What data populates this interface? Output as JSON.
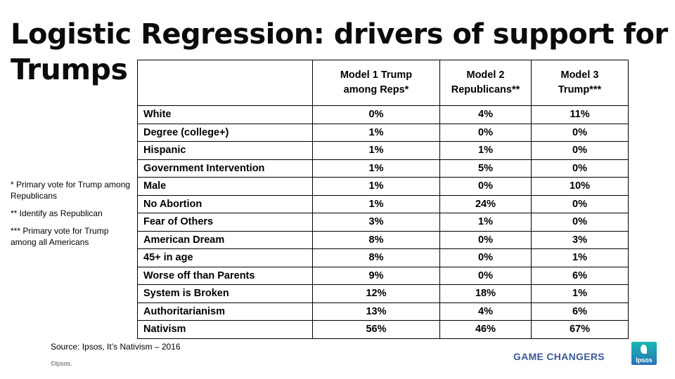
{
  "title": {
    "line1": "Logistic Regression: drivers of support for",
    "line2": "Trumps"
  },
  "notes": [
    "* Primary vote for Trump among Republicans",
    "** Identify as Republican",
    "*** Primary vote for Trump among all Americans"
  ],
  "table": {
    "headers": [
      "",
      "Model 1 Trump among Reps*",
      "Model 2 Republicans**",
      "Model 3 Trump***"
    ],
    "header_lines": [
      [
        "",
        ""
      ],
      [
        "Model 1 Trump",
        "among Reps*"
      ],
      [
        "Model 2",
        "Republicans**"
      ],
      [
        "Model 3",
        "Trump***"
      ]
    ],
    "rows": [
      {
        "label": "White",
        "m1": "0%",
        "m2": "4%",
        "m3": "11%"
      },
      {
        "label": "Degree (college+)",
        "m1": "1%",
        "m2": "0%",
        "m3": "0%"
      },
      {
        "label": "Hispanic",
        "m1": "1%",
        "m2": "1%",
        "m3": "0%"
      },
      {
        "label": "Government Intervention",
        "m1": "1%",
        "m2": "5%",
        "m3": "0%"
      },
      {
        "label": "Male",
        "m1": "1%",
        "m2": "0%",
        "m3": "10%"
      },
      {
        "label": "No Abortion",
        "m1": "1%",
        "m2": "24%",
        "m3": "0%"
      },
      {
        "label": "Fear of Others",
        "m1": "3%",
        "m2": "1%",
        "m3": "0%"
      },
      {
        "label": "American Dream",
        "m1": "8%",
        "m2": "0%",
        "m3": "3%"
      },
      {
        "label": "45+ in age",
        "m1": "8%",
        "m2": "0%",
        "m3": "1%"
      },
      {
        "label": "Worse off than Parents",
        "m1": "9%",
        "m2": "0%",
        "m3": "6%"
      },
      {
        "label": "System is Broken",
        "m1": "12%",
        "m2": "18%",
        "m3": "1%"
      },
      {
        "label": "Authoritarianism",
        "m1": "13%",
        "m2": "4%",
        "m3": "6%"
      },
      {
        "label": "Nativism",
        "m1": "56%",
        "m2": "46%",
        "m3": "67%"
      }
    ]
  },
  "footer": {
    "source": "Source: Ipsos, It’s Nativism – 2016",
    "copyright": "©Ipsos.",
    "tagline": "GAME CHANGERS",
    "logo_text": "Ipsos"
  },
  "colors": {
    "tagline": "#3d5a96",
    "logo_top": "#16b8b0",
    "logo_bottom": "#2b74b8"
  }
}
